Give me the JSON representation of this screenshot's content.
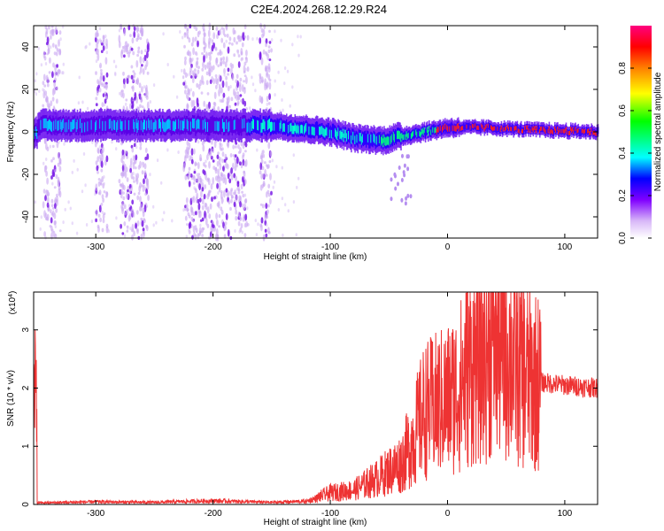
{
  "title": "C2E4.2024.268.12.29.R24",
  "spectrogram": {
    "type": "heatmap",
    "xlabel": "Height of straight line (km)",
    "ylabel": "Frequency (Hz)",
    "xlim": [
      -353,
      128
    ],
    "ylim": [
      -50,
      50
    ],
    "xticks": [
      -300,
      -200,
      -100,
      0,
      100
    ],
    "yticks": [
      -40,
      -20,
      0,
      20,
      40
    ],
    "band_center_hz": [
      {
        "x": -350,
        "f": 3
      },
      {
        "x": -300,
        "f": 3
      },
      {
        "x": -200,
        "f": 3
      },
      {
        "x": -150,
        "f": 3
      },
      {
        "x": -100,
        "f": 0
      },
      {
        "x": -80,
        "f": -3
      },
      {
        "x": -55,
        "f": -4
      },
      {
        "x": -40,
        "f": -2
      },
      {
        "x": -20,
        "f": 0
      },
      {
        "x": 0,
        "f": 2
      },
      {
        "x": 30,
        "f": 2
      },
      {
        "x": 70,
        "f": 1
      },
      {
        "x": 128,
        "f": 0
      }
    ],
    "noise_columns_km": [
      [
        -345,
        -330
      ],
      [
        -300,
        -290
      ],
      [
        -280,
        -255
      ],
      [
        -225,
        -170
      ],
      [
        -160,
        -150
      ]
    ]
  },
  "colorbar": {
    "label": "Normalized spectral amplitude",
    "ticks": [
      0.0,
      0.2,
      0.4,
      0.6,
      0.8
    ],
    "tick_labels": [
      "0.0",
      "0.2",
      "0.4",
      "0.6",
      "0.8"
    ],
    "range": [
      0,
      1
    ],
    "colormap": [
      "#ffffff",
      "#d8b8f8",
      "#8000ff",
      "#0000ff",
      "#00ffff",
      "#00ff00",
      "#ffff00",
      "#ff8000",
      "#ff0000",
      "#ff0080"
    ]
  },
  "chart_data": {
    "type": "line",
    "xlabel": "Height of straight line (km)",
    "ylabel": "SNR (10 * v/v)",
    "yscale_label": "(x10",
    "yscale_exp": "4",
    "xlim": [
      -353,
      128
    ],
    "ylim": [
      0,
      3.65
    ],
    "xticks": [
      -300,
      -200,
      -100,
      0,
      100
    ],
    "yticks": [
      0,
      1,
      2,
      3
    ],
    "color": "#ee3333",
    "series": [
      {
        "x": [
          -350,
          -300,
          -250,
          -200,
          -150,
          -120,
          -100,
          -80,
          -60,
          -40,
          -30,
          -20,
          -10,
          0,
          10,
          20,
          30,
          40,
          50,
          60,
          70,
          80,
          100,
          128
        ],
        "y": [
          0.03,
          0.05,
          0.04,
          0.07,
          0.04,
          0.06,
          0.2,
          0.25,
          0.45,
          0.7,
          1.1,
          1.6,
          1.7,
          1.8,
          2.0,
          2.4,
          2.6,
          2.9,
          2.7,
          2.4,
          2.15,
          2.1,
          2.05,
          2.0
        ]
      }
    ]
  }
}
